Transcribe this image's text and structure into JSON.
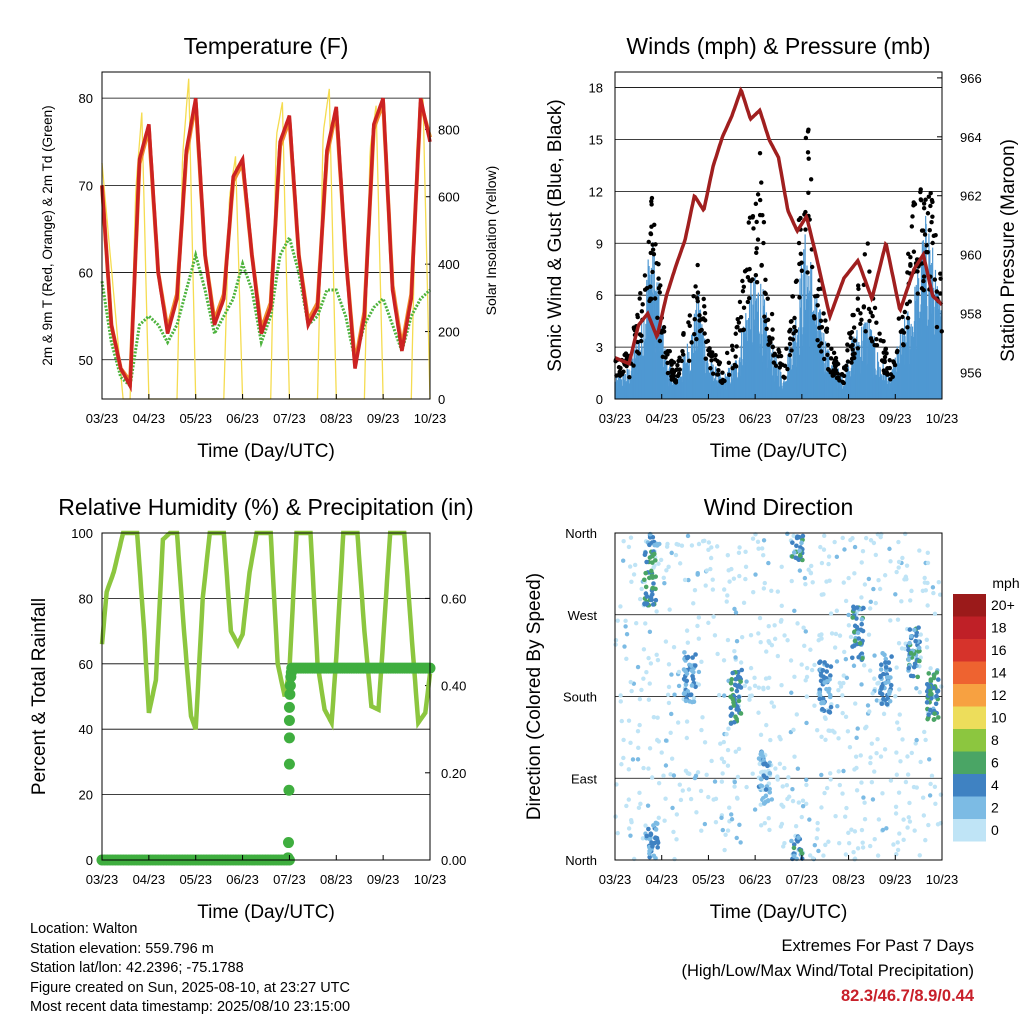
{
  "x_ticks": [
    "03/23",
    "04/23",
    "05/23",
    "06/23",
    "07/23",
    "08/23",
    "09/23",
    "10/23"
  ],
  "colors": {
    "temp_2m": "#cc2222",
    "temp_9m": "#f08a2c",
    "dewpoint": "#4db33d",
    "solar": "#f5dc50",
    "wind": "#4f98d2",
    "gust": "#000000",
    "pressure": "#a01f1f",
    "rh": "#8cc63f",
    "precip": "#3fae3f",
    "extremes": "#c8202a"
  },
  "chart_data": [
    {
      "type": "line",
      "title": "Temperature (F)",
      "xlabel": "Time (Day/UTC)",
      "ylabel": "2m & 9m T (Red, Orange) & 2m Td (Green)",
      "ylabel_right": "Solar Insolation (Yellow)",
      "ylim": [
        45.5,
        83
      ],
      "yticks": [
        50,
        60,
        70,
        80
      ],
      "ylim_right": [
        0,
        970
      ],
      "yticks_right": [
        0,
        200,
        400,
        600,
        800
      ],
      "grid": true,
      "series": [
        {
          "name": "2m T",
          "x": [
            0,
            0.2,
            0.4,
            0.6,
            0.8,
            1.0,
            1.2,
            1.4,
            1.6,
            1.8,
            2.0,
            2.2,
            2.4,
            2.6,
            2.8,
            3.0,
            3.2,
            3.4,
            3.6,
            3.8,
            4.0,
            4.2,
            4.4,
            4.6,
            4.8,
            5.0,
            5.2,
            5.4,
            5.6,
            5.8,
            6.0,
            6.2,
            6.4,
            6.6,
            6.8,
            7.0
          ],
          "values": [
            70,
            54,
            49,
            47,
            73,
            77,
            60,
            53,
            57,
            74,
            80,
            62,
            54,
            57,
            71,
            73,
            62,
            53,
            56,
            75,
            78,
            62,
            54,
            56,
            74,
            79,
            62,
            49,
            55,
            77,
            80,
            58,
            51,
            57,
            80,
            75
          ]
        },
        {
          "name": "9m T",
          "x": [
            0,
            0.2,
            0.4,
            0.6,
            0.8,
            1.0,
            1.2,
            1.4,
            1.6,
            1.8,
            2.0,
            2.2,
            2.4,
            2.6,
            2.8,
            3.0,
            3.2,
            3.4,
            3.6,
            3.8,
            4.0,
            4.2,
            4.4,
            4.6,
            4.8,
            5.0,
            5.2,
            5.4,
            5.6,
            5.8,
            6.0,
            6.2,
            6.4,
            6.6,
            6.8,
            7.0
          ],
          "values": [
            70,
            54,
            49,
            47.5,
            72.5,
            76.5,
            60,
            53.5,
            57.5,
            73.5,
            79.5,
            62,
            54.5,
            57.5,
            70.5,
            72.5,
            62,
            53.5,
            56.5,
            74.5,
            77.5,
            62,
            54.5,
            56.5,
            73.5,
            78.5,
            62,
            49.5,
            55.5,
            76.5,
            79.5,
            58.5,
            51.5,
            57.5,
            79.5,
            75.5
          ]
        },
        {
          "name": "2m Td",
          "x": [
            0,
            0.2,
            0.4,
            0.6,
            0.8,
            1.0,
            1.2,
            1.4,
            1.6,
            1.8,
            2.0,
            2.2,
            2.4,
            2.6,
            2.8,
            3.0,
            3.2,
            3.4,
            3.6,
            3.8,
            4.0,
            4.2,
            4.4,
            4.6,
            4.8,
            5.0,
            5.2,
            5.4,
            5.6,
            5.8,
            6.0,
            6.2,
            6.4,
            6.6,
            6.8,
            7.0
          ],
          "values": [
            59,
            52,
            48,
            47,
            54,
            55,
            54,
            52,
            54,
            58,
            62,
            58,
            53,
            55,
            57,
            61,
            58,
            52,
            55,
            62,
            64,
            60,
            54,
            55,
            58,
            58,
            55,
            50,
            54,
            56,
            57,
            54,
            51,
            55,
            57,
            58
          ]
        },
        {
          "name": "Solar Insolation",
          "axis": "right",
          "x": [
            0,
            0.45,
            0.6,
            0.72,
            0.85,
            1.0,
            1.45,
            1.6,
            1.72,
            1.85,
            2.0,
            2.45,
            2.6,
            2.72,
            2.85,
            3.0,
            3.45,
            3.6,
            3.72,
            3.85,
            4.0,
            4.45,
            4.6,
            4.72,
            4.85,
            5.0,
            5.45,
            5.6,
            5.72,
            5.85,
            6.0,
            6.45,
            6.6,
            6.72,
            6.85,
            7.0
          ],
          "values": [
            700,
            0,
            0,
            620,
            850,
            0,
            0,
            0,
            720,
            950,
            0,
            0,
            0,
            600,
            720,
            0,
            0,
            0,
            780,
            880,
            0,
            0,
            0,
            790,
            920,
            0,
            0,
            0,
            740,
            870,
            0,
            0,
            0,
            760,
            890,
            0
          ]
        }
      ]
    },
    {
      "type": "scatter",
      "title": "Winds (mph) & Pressure (mb)",
      "xlabel": "Time (Day/UTC)",
      "ylabel": "Sonic Wind & Gust (Blue, Black)",
      "ylabel_right": "Station Pressure (Maroon)",
      "ylim": [
        0,
        18.9
      ],
      "yticks": [
        0,
        3,
        6,
        9,
        12,
        15,
        18
      ],
      "ylim_right": [
        955.1,
        966.2
      ],
      "yticks_right": [
        956,
        958,
        960,
        962,
        964,
        966
      ],
      "grid": true,
      "series": [
        {
          "name": "Sonic Wind",
          "x": [
            0,
            0.3,
            0.6,
            0.75,
            0.9,
            1.1,
            1.3,
            1.6,
            1.8,
            2.0,
            2.3,
            2.6,
            2.85,
            3.1,
            3.3,
            3.6,
            3.85,
            4.1,
            4.3,
            4.6,
            4.9,
            5.1,
            5.4,
            5.65,
            5.9,
            6.1,
            6.4,
            6.7,
            6.85,
            7.0
          ],
          "values": [
            1,
            1.5,
            4,
            8,
            6,
            2,
            1,
            3,
            5,
            2,
            1,
            2,
            5,
            6,
            3,
            1,
            4,
            8,
            5,
            2,
            1,
            3,
            4,
            2,
            1,
            3,
            5,
            9,
            6,
            4
          ]
        },
        {
          "name": "Gust",
          "x": [
            0,
            0.3,
            0.6,
            0.75,
            0.9,
            1.1,
            1.3,
            1.6,
            1.8,
            2.0,
            2.3,
            2.6,
            2.85,
            3.1,
            3.3,
            3.6,
            3.85,
            4.1,
            4.3,
            4.6,
            4.9,
            5.1,
            5.4,
            5.65,
            5.9,
            6.1,
            6.4,
            6.7,
            6.85,
            7.0
          ],
          "values": [
            3,
            2.5,
            7,
            13,
            9,
            3,
            2,
            5,
            8,
            3,
            2,
            4,
            10,
            14,
            6,
            2,
            7,
            17,
            8,
            3,
            2,
            5,
            9,
            4,
            2,
            5,
            12,
            13,
            10,
            7
          ]
        },
        {
          "name": "Station Pressure",
          "axis": "right",
          "x": [
            0,
            0.3,
            0.5,
            0.7,
            0.9,
            1.1,
            1.3,
            1.5,
            1.7,
            1.9,
            2.1,
            2.3,
            2.5,
            2.7,
            2.9,
            3.1,
            3.3,
            3.5,
            3.7,
            3.9,
            4.1,
            4.3,
            4.6,
            4.9,
            5.2,
            5.5,
            5.8,
            6.1,
            6.4,
            6.6,
            6.8,
            7.0
          ],
          "values": [
            956.5,
            956.3,
            957.6,
            958.0,
            957.2,
            958.6,
            959.6,
            960.5,
            962.0,
            961.5,
            963.0,
            964.0,
            964.7,
            965.6,
            964.6,
            964.9,
            963.9,
            963.3,
            961.5,
            960.8,
            961.3,
            960.0,
            957.9,
            959.2,
            959.8,
            958.5,
            960.4,
            958.1,
            959.5,
            960.0,
            958.6,
            958.3
          ]
        }
      ]
    },
    {
      "type": "line",
      "title": "Relative Humidity (%) & Precipitation (in)",
      "xlabel": "Time (Day/UTC)",
      "ylabel": "Percent & Total Rainfall",
      "ylim": [
        0,
        100
      ],
      "yticks": [
        0,
        20,
        40,
        60,
        80,
        100
      ],
      "ylim_right": [
        0,
        0.75
      ],
      "yticks_right": [
        "0.00",
        "0.20",
        "0.40",
        "0.60"
      ],
      "grid": true,
      "series": [
        {
          "name": "Relative Humidity",
          "x": [
            0,
            0.1,
            0.25,
            0.45,
            0.6,
            0.75,
            0.9,
            1.0,
            1.15,
            1.3,
            1.45,
            1.6,
            1.75,
            1.9,
            2.0,
            2.15,
            2.3,
            2.45,
            2.6,
            2.75,
            2.9,
            3.0,
            3.15,
            3.3,
            3.45,
            3.6,
            3.75,
            3.9,
            4.0,
            4.15,
            4.3,
            4.45,
            4.6,
            4.75,
            4.9,
            5.0,
            5.15,
            5.3,
            5.45,
            5.6,
            5.75,
            5.9,
            6.0,
            6.15,
            6.3,
            6.45,
            6.6,
            6.75,
            6.9,
            7.0
          ],
          "values": [
            66,
            82,
            88,
            100,
            100,
            100,
            70,
            45,
            55,
            98,
            100,
            100,
            70,
            44,
            40,
            80,
            100,
            100,
            100,
            70,
            66,
            69,
            88,
            100,
            100,
            100,
            60,
            50,
            58,
            100,
            100,
            100,
            60,
            46,
            42,
            62,
            100,
            100,
            100,
            70,
            47,
            46,
            67,
            100,
            100,
            100,
            70,
            42,
            45,
            57
          ]
        },
        {
          "name": "Total Precipitation",
          "axis": "right",
          "x": [
            0,
            1,
            2,
            3,
            3.95,
            3.98,
            4.0,
            4.02,
            4.04,
            4.06,
            4.08,
            4.1,
            4.12,
            4.2,
            5,
            6,
            7
          ],
          "values": [
            0,
            0,
            0,
            0,
            0,
            0.04,
            0.16,
            0.24,
            0.28,
            0.32,
            0.36,
            0.4,
            0.43,
            0.44,
            0.44,
            0.44,
            0.44
          ]
        }
      ]
    },
    {
      "type": "scatter",
      "title": "Wind Direction",
      "xlabel": "Time (Day/UTC)",
      "ylabel": "Direction (Colored By Speed)",
      "yticks": [
        "North",
        "East",
        "South",
        "West",
        "North"
      ],
      "grid": true,
      "legend": {
        "title": "mph",
        "labels": [
          "20+",
          "18",
          "16",
          "14",
          "12",
          "10",
          "8",
          "6",
          "4",
          "2",
          "0"
        ],
        "colors": [
          "#9b1a1a",
          "#bf2027",
          "#d6332b",
          "#ee6330",
          "#f7a141",
          "#eddd5b",
          "#8cc63f",
          "#4aa565",
          "#3f82c2",
          "#7cbbe4",
          "#bfe4f6"
        ]
      },
      "clusters": [
        {
          "x": 0.75,
          "dir": 310,
          "speed": 5
        },
        {
          "x": 0.8,
          "dir": 15,
          "speed": 3
        },
        {
          "x": 1.6,
          "dir": 200,
          "speed": 3
        },
        {
          "x": 2.6,
          "dir": 180,
          "speed": 5
        },
        {
          "x": 3.2,
          "dir": 90,
          "speed": 2
        },
        {
          "x": 3.9,
          "dir": 0,
          "speed": 4
        },
        {
          "x": 4.5,
          "dir": 190,
          "speed": 3
        },
        {
          "x": 5.2,
          "dir": 250,
          "speed": 4
        },
        {
          "x": 5.8,
          "dir": 200,
          "speed": 3
        },
        {
          "x": 6.4,
          "dir": 230,
          "speed": 4
        },
        {
          "x": 6.8,
          "dir": 180,
          "speed": 5
        }
      ]
    }
  ],
  "info": {
    "location": "Location: Walton",
    "elevation": "Station elevation: 559.796 m",
    "latlon": "Station lat/lon: 42.2396; -75.1788",
    "created": "Figure created on Sun, 2025-08-10, at 23:27 UTC",
    "recent": "Most recent data timestamp: 2025/08/10 23:15:00"
  },
  "extremes": {
    "title": "Extremes For Past 7 Days",
    "subtitle": "(High/Low/Max Wind/Total Precipitation)",
    "values": "82.3/46.7/8.9/0.44"
  }
}
